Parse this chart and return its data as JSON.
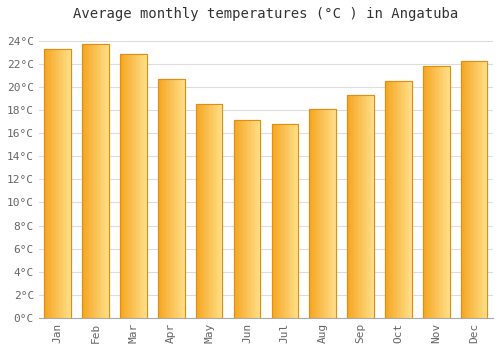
{
  "title": "Average monthly temperatures (°C ) in Angatuba",
  "months": [
    "Jan",
    "Feb",
    "Mar",
    "Apr",
    "May",
    "Jun",
    "Jul",
    "Aug",
    "Sep",
    "Oct",
    "Nov",
    "Dec"
  ],
  "values": [
    23.3,
    23.7,
    22.8,
    20.7,
    18.5,
    17.1,
    16.8,
    18.1,
    19.3,
    20.5,
    21.8,
    22.2
  ],
  "bar_color_left": "#F5A623",
  "bar_color_right": "#FFD080",
  "bar_edge_color": "#E09010",
  "background_color": "#FFFFFF",
  "plot_bg_color": "#FFFFFF",
  "grid_color": "#DDDDDD",
  "ylim": [
    0,
    25
  ],
  "ytick_max": 24,
  "ytick_step": 2,
  "title_fontsize": 10,
  "tick_fontsize": 8,
  "font_family": "monospace"
}
